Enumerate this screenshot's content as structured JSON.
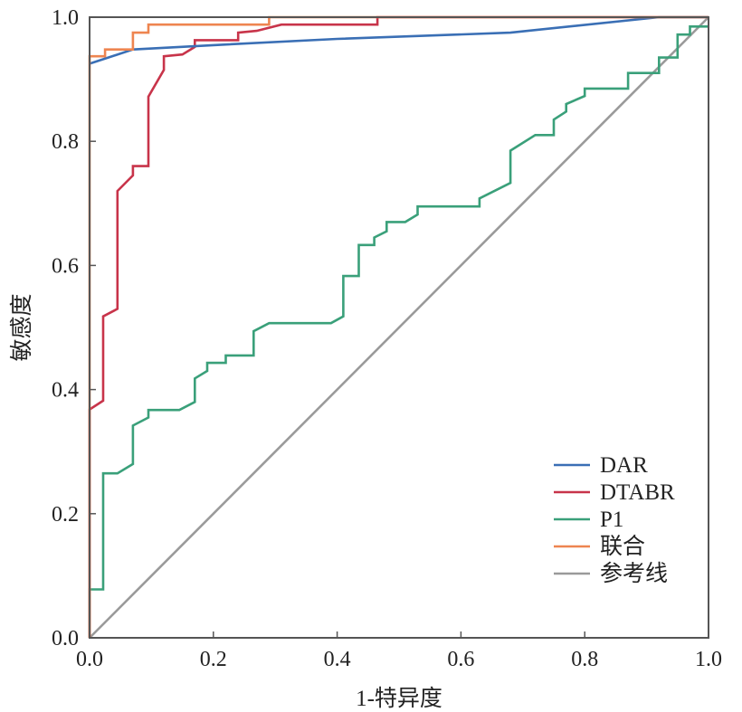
{
  "chart_data": {
    "type": "line",
    "title": "",
    "xlabel": "1-特异度",
    "ylabel": "敏感度",
    "xlim": [
      0,
      1
    ],
    "ylim": [
      0,
      1
    ],
    "x_ticks": [
      "0.0",
      "0.2",
      "0.4",
      "0.6",
      "0.8",
      "1.0"
    ],
    "y_ticks": [
      "0.0",
      "0.2",
      "0.4",
      "0.6",
      "0.8",
      "1.0"
    ],
    "legend_position": "bottom-right",
    "series": [
      {
        "name": "DAR",
        "color": "#3a6fb5",
        "x": [
          0,
          0.07,
          0.2,
          0.4,
          0.68,
          0.92,
          1.0
        ],
        "y": [
          0.925,
          0.948,
          0.955,
          0.965,
          0.975,
          1.0,
          1.0
        ]
      },
      {
        "name": "DTABR",
        "color": "#c8344a",
        "x": [
          0,
          0,
          0.022,
          0.022,
          0.045,
          0.045,
          0.07,
          0.07,
          0.095,
          0.095,
          0.12,
          0.12,
          0.15,
          0.17,
          0.17,
          0.24,
          0.24,
          0.27,
          0.31,
          0.465,
          0.465,
          1.0
        ],
        "y": [
          0,
          0.368,
          0.382,
          0.518,
          0.53,
          0.72,
          0.745,
          0.76,
          0.76,
          0.872,
          0.915,
          0.937,
          0.94,
          0.952,
          0.963,
          0.963,
          0.975,
          0.978,
          0.988,
          0.988,
          1.0,
          1.0
        ]
      },
      {
        "name": "P1",
        "color": "#3aa07a",
        "x": [
          0,
          0,
          0.022,
          0.022,
          0.045,
          0.07,
          0.07,
          0.095,
          0.095,
          0.145,
          0.17,
          0.17,
          0.19,
          0.19,
          0.22,
          0.22,
          0.265,
          0.265,
          0.29,
          0.39,
          0.41,
          0.41,
          0.435,
          0.435,
          0.46,
          0.46,
          0.48,
          0.48,
          0.51,
          0.53,
          0.53,
          0.63,
          0.63,
          0.68,
          0.68,
          0.72,
          0.75,
          0.75,
          0.77,
          0.77,
          0.8,
          0.8,
          0.87,
          0.87,
          0.92,
          0.92,
          0.95,
          0.95,
          0.97,
          0.97,
          1.0
        ],
        "y": [
          0,
          0.078,
          0.078,
          0.265,
          0.265,
          0.28,
          0.342,
          0.355,
          0.367,
          0.367,
          0.38,
          0.418,
          0.43,
          0.443,
          0.443,
          0.455,
          0.455,
          0.494,
          0.507,
          0.507,
          0.518,
          0.583,
          0.583,
          0.633,
          0.633,
          0.645,
          0.655,
          0.67,
          0.67,
          0.682,
          0.695,
          0.695,
          0.708,
          0.733,
          0.785,
          0.81,
          0.81,
          0.835,
          0.848,
          0.86,
          0.873,
          0.885,
          0.885,
          0.91,
          0.91,
          0.935,
          0.935,
          0.972,
          0.972,
          0.985,
          0.985
        ]
      },
      {
        "name": "联合",
        "color": "#ee8550",
        "x": [
          0,
          0,
          0.025,
          0.025,
          0.07,
          0.07,
          0.095,
          0.095,
          0.29,
          0.29,
          1.0
        ],
        "y": [
          0,
          0.937,
          0.937,
          0.948,
          0.948,
          0.975,
          0.975,
          0.988,
          0.988,
          1.0,
          1.0
        ]
      },
      {
        "name": "参考线",
        "color": "#9a9a9a",
        "x": [
          0,
          1
        ],
        "y": [
          0,
          1
        ]
      }
    ]
  }
}
